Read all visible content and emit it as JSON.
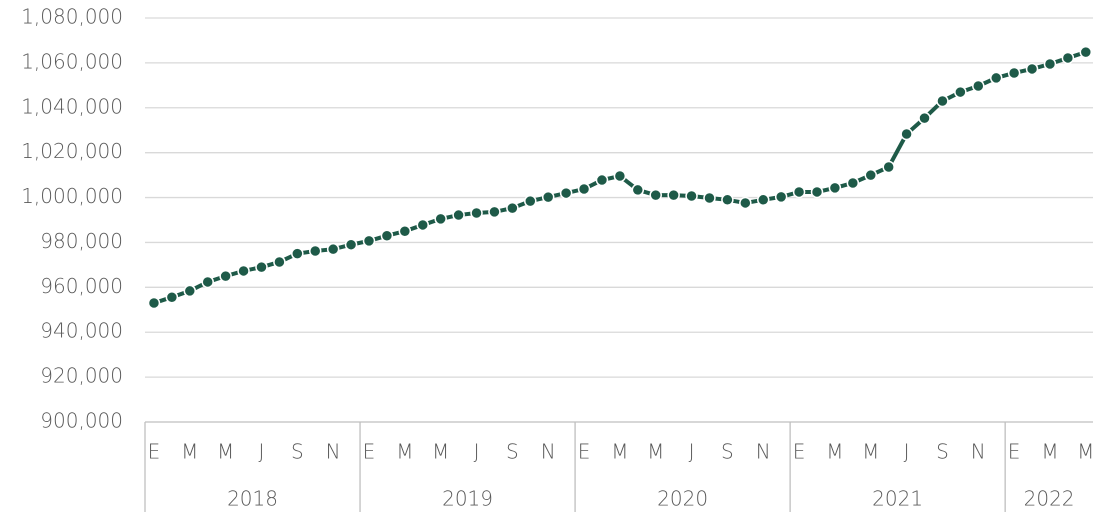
{
  "chart_data": {
    "type": "line",
    "categories": [
      "E",
      null,
      "M",
      null,
      "M",
      null,
      "J",
      null,
      "S",
      null,
      "N",
      null,
      "E",
      null,
      "M",
      null,
      "M",
      null,
      "J",
      null,
      "S",
      null,
      "N",
      null,
      "E",
      null,
      "M",
      null,
      "M",
      null,
      "J",
      null,
      "S",
      null,
      "N",
      null,
      "E",
      null,
      "M",
      null,
      "M",
      null,
      "J",
      null,
      "S",
      null,
      "N",
      null,
      "E",
      null,
      "M",
      null,
      "M"
    ],
    "years": [
      "2018",
      "2019",
      "2020",
      "2021",
      "2022"
    ],
    "series": [
      {
        "name": null,
        "color": "#1e5a48",
        "values": [
          953000,
          955600,
          958400,
          962400,
          965000,
          967300,
          969000,
          971300,
          975000,
          976200,
          977000,
          979000,
          980700,
          983000,
          985000,
          987800,
          990500,
          992200,
          993100,
          993600,
          995300,
          998400,
          1000200,
          1002000,
          1003800,
          1007800,
          1009600,
          1003400,
          1001100,
          1001100,
          1000700,
          999800,
          999000,
          997600,
          999000,
          1000300,
          1002500,
          1002500,
          1004300,
          1006500,
          1010000,
          1013600,
          1028300,
          1035400,
          1043000,
          1047000,
          1049700,
          1053300,
          1055500,
          1057300,
          1059500,
          1062200,
          1064800
        ]
      }
    ],
    "ylim": [
      900000,
      1080000
    ],
    "yticks": [
      {
        "value": 900000,
        "label": "900,000"
      },
      {
        "value": 920000,
        "label": "920,000"
      },
      {
        "value": 940000,
        "label": "940,000"
      },
      {
        "value": 960000,
        "label": "960,000"
      },
      {
        "value": 980000,
        "label": "980,000"
      },
      {
        "value": 1000000,
        "label": "1,000,000"
      },
      {
        "value": 1020000,
        "label": "1,020,000"
      },
      {
        "value": 1040000,
        "label": "1,040,000"
      },
      {
        "value": 1060000,
        "label": "1,060,000"
      },
      {
        "value": 1080000,
        "label": "1,080,000"
      }
    ],
    "grid": true
  }
}
